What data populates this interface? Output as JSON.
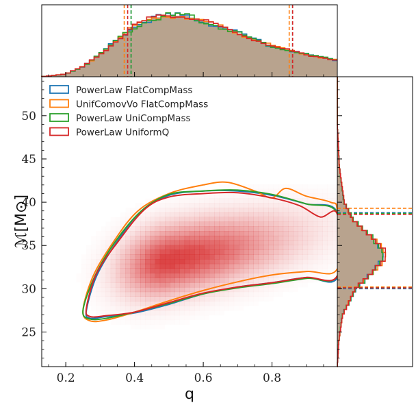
{
  "chart_data": {
    "type": "corner",
    "xlabel": "q",
    "ylabel": "ℳ[M⊙]",
    "xlim": [
      0.13,
      0.99
    ],
    "ylim": [
      21,
      54.5
    ],
    "x_ticks": [
      {
        "value": 0.2,
        "label": "0.2"
      },
      {
        "value": 0.4,
        "label": "0.4"
      },
      {
        "value": 0.6,
        "label": "0.6"
      },
      {
        "value": 0.8,
        "label": "0.8"
      }
    ],
    "y_ticks": [
      {
        "value": 25,
        "label": "25"
      },
      {
        "value": 30,
        "label": "30"
      },
      {
        "value": 35,
        "label": "35"
      },
      {
        "value": 40,
        "label": "40"
      },
      {
        "value": 45,
        "label": "45"
      },
      {
        "value": 50,
        "label": "50"
      }
    ],
    "legend_position": "top-left",
    "series": [
      {
        "name": "PowerLaw FlatCompMass",
        "color": "#1f77b4",
        "q_interval": [
          0.39,
          0.86
        ],
        "mc_interval": [
          30.0,
          38.8
        ],
        "contour": [
          [
            0.26,
            27.5
          ],
          [
            0.29,
            31.5
          ],
          [
            0.35,
            35.5
          ],
          [
            0.42,
            39.0
          ],
          [
            0.5,
            40.8
          ],
          [
            0.6,
            41.3
          ],
          [
            0.7,
            41.3
          ],
          [
            0.8,
            40.8
          ],
          [
            0.9,
            39.8
          ],
          [
            0.99,
            38.8
          ],
          [
            0.99,
            31.3
          ],
          [
            0.9,
            31.3
          ],
          [
            0.8,
            30.7
          ],
          [
            0.7,
            30.2
          ],
          [
            0.6,
            29.4
          ],
          [
            0.5,
            28.2
          ],
          [
            0.4,
            27.2
          ],
          [
            0.32,
            26.8
          ],
          [
            0.27,
            26.6
          ]
        ]
      },
      {
        "name": "UnifComovVo FlatCompMass",
        "color": "#ff7f0e",
        "q_interval": [
          0.37,
          0.85
        ],
        "mc_interval": [
          30.2,
          39.3
        ],
        "contour": [
          [
            0.25,
            27.5
          ],
          [
            0.28,
            31.5
          ],
          [
            0.34,
            35.5
          ],
          [
            0.41,
            39.0
          ],
          [
            0.5,
            41.0
          ],
          [
            0.6,
            42.0
          ],
          [
            0.67,
            42.3
          ],
          [
            0.75,
            41.3
          ],
          [
            0.8,
            40.5
          ],
          [
            0.84,
            41.6
          ],
          [
            0.9,
            40.7
          ],
          [
            0.97,
            40.0
          ],
          [
            0.99,
            39.0
          ],
          [
            0.99,
            32.3
          ],
          [
            0.9,
            32.0
          ],
          [
            0.8,
            31.6
          ],
          [
            0.7,
            30.8
          ],
          [
            0.6,
            29.8
          ],
          [
            0.5,
            28.6
          ],
          [
            0.4,
            27.3
          ],
          [
            0.32,
            26.4
          ],
          [
            0.27,
            26.3
          ]
        ]
      },
      {
        "name": "PowerLaw UniCompMass",
        "color": "#2ca02c",
        "q_interval": [
          0.39,
          0.86
        ],
        "mc_interval": [
          30.1,
          38.7
        ],
        "contour": [
          [
            0.25,
            27.5
          ],
          [
            0.285,
            31.5
          ],
          [
            0.345,
            35.5
          ],
          [
            0.42,
            39.0
          ],
          [
            0.5,
            40.9
          ],
          [
            0.6,
            41.3
          ],
          [
            0.7,
            41.4
          ],
          [
            0.8,
            40.9
          ],
          [
            0.9,
            39.8
          ],
          [
            0.99,
            38.7
          ],
          [
            0.99,
            31.5
          ],
          [
            0.9,
            31.2
          ],
          [
            0.8,
            30.6
          ],
          [
            0.7,
            30.1
          ],
          [
            0.6,
            29.4
          ],
          [
            0.5,
            28.3
          ],
          [
            0.4,
            27.3
          ],
          [
            0.32,
            26.6
          ],
          [
            0.27,
            26.5
          ]
        ]
      },
      {
        "name": "PowerLaw UniformQ",
        "color": "#d62728",
        "q_interval": [
          0.38,
          0.86
        ],
        "mc_interval": [
          30.1,
          38.6
        ],
        "contour": [
          [
            0.26,
            27.8
          ],
          [
            0.29,
            31.8
          ],
          [
            0.355,
            35.6
          ],
          [
            0.43,
            39.2
          ],
          [
            0.5,
            40.6
          ],
          [
            0.6,
            41.0
          ],
          [
            0.7,
            41.1
          ],
          [
            0.8,
            40.5
          ],
          [
            0.88,
            39.6
          ],
          [
            0.94,
            38.3
          ],
          [
            0.99,
            38.6
          ],
          [
            0.99,
            31.5
          ],
          [
            0.9,
            31.3
          ],
          [
            0.8,
            30.7
          ],
          [
            0.7,
            30.2
          ],
          [
            0.6,
            29.5
          ],
          [
            0.5,
            28.4
          ],
          [
            0.4,
            27.3
          ],
          [
            0.32,
            26.9
          ],
          [
            0.27,
            26.8
          ]
        ]
      }
    ],
    "density_peak": {
      "q": 0.5,
      "mc": 33.3
    },
    "top_histogram_profile": [
      [
        0.13,
        0.0
      ],
      [
        0.2,
        0.04
      ],
      [
        0.25,
        0.15
      ],
      [
        0.3,
        0.33
      ],
      [
        0.35,
        0.55
      ],
      [
        0.4,
        0.74
      ],
      [
        0.45,
        0.86
      ],
      [
        0.5,
        0.9
      ],
      [
        0.55,
        0.9
      ],
      [
        0.6,
        0.82
      ],
      [
        0.7,
        0.65
      ],
      [
        0.8,
        0.45
      ],
      [
        0.9,
        0.33
      ],
      [
        0.99,
        0.24
      ]
    ],
    "right_histogram_profile": [
      [
        21,
        0.0
      ],
      [
        24,
        0.03
      ],
      [
        27,
        0.1
      ],
      [
        30,
        0.35
      ],
      [
        32,
        0.7
      ],
      [
        33.5,
        0.9
      ],
      [
        34.5,
        0.88
      ],
      [
        36,
        0.65
      ],
      [
        38,
        0.3
      ],
      [
        40,
        0.13
      ],
      [
        44,
        0.04
      ],
      [
        49,
        0.0
      ]
    ]
  },
  "legend_entries": [
    {
      "label": "PowerLaw FlatCompMass",
      "color": "#1f77b4"
    },
    {
      "label": "UnifComovVo FlatCompMass",
      "color": "#ff7f0e"
    },
    {
      "label": "PowerLaw UniCompMass",
      "color": "#2ca02c"
    },
    {
      "label": "PowerLaw UniformQ",
      "color": "#d62728"
    }
  ],
  "colors": {
    "density": "#d62728",
    "hist_fill": "#a08468"
  }
}
